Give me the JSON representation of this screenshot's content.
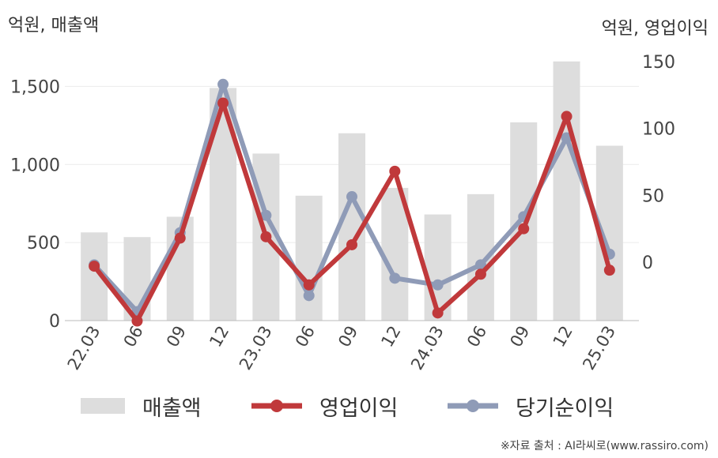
{
  "chart_data": {
    "type": "bar+line",
    "categories": [
      "22.03",
      "06",
      "09",
      "12",
      "23.03",
      "06",
      "09",
      "12",
      "24.03",
      "06",
      "09",
      "12",
      "25.03"
    ],
    "bars": {
      "name": "매출액",
      "axis": "left",
      "color": "#dddddd",
      "values": [
        565,
        535,
        665,
        1490,
        1070,
        800,
        1200,
        850,
        680,
        810,
        1270,
        1660,
        1120
      ]
    },
    "series": [
      {
        "name": "영업이익",
        "axis": "right",
        "color": "#c0393b",
        "values": [
          -3,
          -44,
          18,
          119,
          19,
          -17,
          13,
          68,
          -38,
          -9,
          25,
          109,
          -6
        ]
      },
      {
        "name": "당기순이익",
        "axis": "right",
        "color": "#8f9bb7",
        "values": [
          -2,
          -37,
          22,
          133,
          35,
          -25,
          49,
          -12,
          -17,
          -2,
          34,
          93,
          6
        ]
      }
    ],
    "y_left": {
      "label": "억원, 매출액",
      "ticks": [
        0,
        500,
        1000,
        1500
      ],
      "tick_labels": [
        "0",
        "500",
        "1,000",
        "1,500"
      ],
      "range": [
        0,
        1750
      ]
    },
    "y_right": {
      "label": "억원, 영업이익",
      "ticks": [
        0,
        50,
        100,
        150
      ],
      "tick_labels": [
        "0",
        "50",
        "100",
        "150"
      ],
      "range": [
        -45,
        160
      ]
    },
    "grid": true,
    "legend_position": "bottom"
  },
  "legend": {
    "sales": "매출액",
    "operating": "영업이익",
    "net": "당기순이익"
  },
  "source_text": "※자료 출처 : AI라씨로(www.rassiro.com)"
}
